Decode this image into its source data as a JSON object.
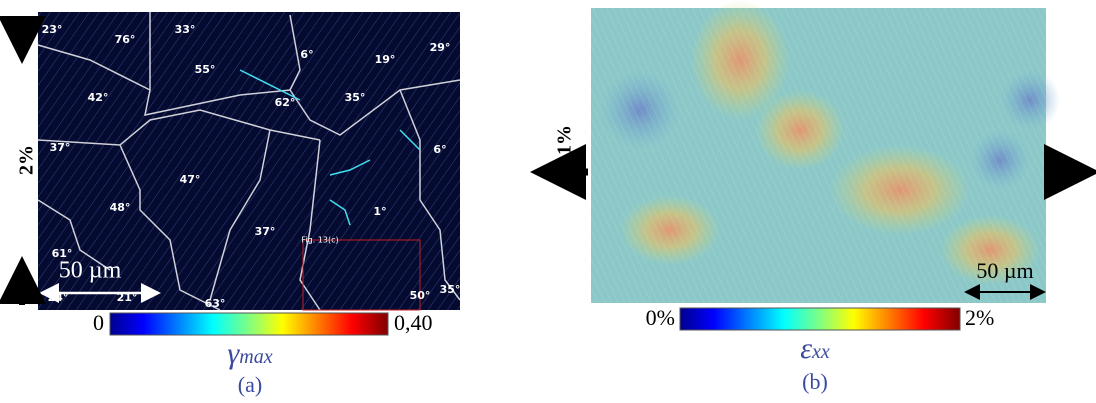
{
  "panel_a": {
    "grain_labels": [
      "23°",
      "76°",
      "33°",
      "55°",
      "6°",
      "19°",
      "29°",
      "42°",
      "62°",
      "35°",
      "37°",
      "6°",
      "47°",
      "48°",
      "1°",
      "37°",
      "61°",
      "24°",
      "21°",
      "63°",
      "50°",
      "35°"
    ],
    "inset_label": "Fig. 13(c)",
    "scale_bar": "50 µm",
    "strain_label": "2%",
    "colorbar": {
      "min_label": "0",
      "max_label": "0,40"
    },
    "symbol": "γ",
    "subscript": "max",
    "caption": "(a)"
  },
  "panel_b": {
    "scale_bar": "50 µm",
    "strain_label": "1%",
    "colorbar": {
      "min_label": "0%",
      "max_label": "2%"
    },
    "symbol": "ε",
    "subscript": "xx",
    "caption": "(b)"
  }
}
